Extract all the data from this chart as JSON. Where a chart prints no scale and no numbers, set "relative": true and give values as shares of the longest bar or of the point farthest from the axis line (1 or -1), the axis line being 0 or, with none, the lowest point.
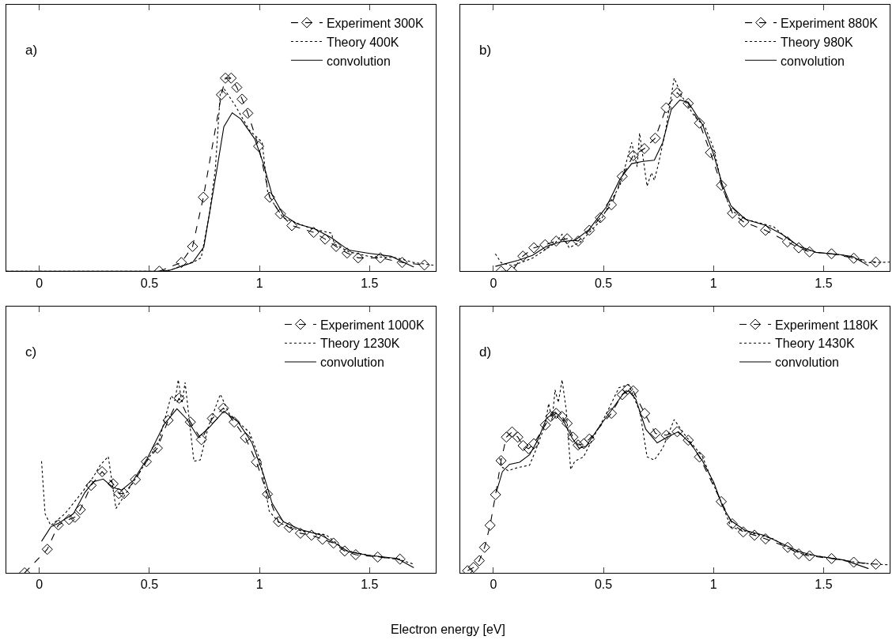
{
  "chart_data": [
    {
      "type": "line",
      "relative": true,
      "annotations": [
        "a)"
      ],
      "xlim": [
        -0.15,
        1.8
      ],
      "xticks": [
        0,
        0.5,
        1,
        1.5
      ],
      "tick_labels": "x",
      "legend": "top right",
      "series": [
        {
          "name": "Experiment 300K",
          "color": "#000000",
          "line_style": "dashed",
          "marker": "diamond",
          "x": [
            0.545,
            0.645,
            0.696,
            0.745,
            0.827,
            0.845,
            0.871,
            0.897,
            0.921,
            0.947,
            0.996,
            1.046,
            1.095,
            1.147,
            1.246,
            1.298,
            1.348,
            1.398,
            1.448,
            1.549,
            1.648,
            1.749
          ],
          "values": [
            0,
            0.045,
            0.128,
            0.383,
            0.914,
            1,
            1,
            0.952,
            0.891,
            0.818,
            0.647,
            0.383,
            0.297,
            0.236,
            0.201,
            0.166,
            0.128,
            0.094,
            0.069,
            0.069,
            0.045,
            0.032
          ]
        },
        {
          "name": "Theory 400K",
          "color": "#000000",
          "line_style": "dotted",
          "marker": "none",
          "x": [
            -0.15,
            0.55,
            0.593,
            0.709,
            0.735,
            0.773,
            0.799,
            0.822,
            0.838,
            0.889,
            0.954,
            1.012,
            1.037,
            1.057,
            1.108,
            1.237,
            1.327,
            1.34,
            1.405,
            1.495,
            1.624,
            1.7,
            1.8
          ],
          "values": [
            0,
            0,
            0.005,
            0.053,
            0.069,
            0.3,
            0.524,
            0.923,
            0.947,
            0.859,
            0.73,
            0.668,
            0.412,
            0.364,
            0.276,
            0.22,
            0.197,
            0.141,
            0.101,
            0.077,
            0.069,
            0.045,
            0.029
          ]
        },
        {
          "name": "convolution",
          "color": "#000000",
          "line_style": "solid",
          "marker": "none",
          "x": [
            -0.15,
            0.55,
            0.593,
            0.696,
            0.747,
            0.799,
            0.838,
            0.876,
            0.915,
            0.979,
            1.018,
            1.057,
            1.108,
            1.173,
            1.25,
            1.327,
            1.405,
            1.495,
            1.598,
            1.701
          ],
          "values": [
            0,
            0,
            0.005,
            0.045,
            0.125,
            0.476,
            0.748,
            0.82,
            0.788,
            0.684,
            0.556,
            0.396,
            0.292,
            0.244,
            0.22,
            0.173,
            0.109,
            0.093,
            0.077,
            0.021
          ]
        }
      ]
    },
    {
      "type": "line",
      "relative": true,
      "annotations": [
        "b)"
      ],
      "xlim": [
        -0.15,
        1.8
      ],
      "xticks": [
        0,
        0.5,
        1,
        1.5
      ],
      "tick_labels": "x",
      "legend": "top right",
      "series": [
        {
          "name": "Experiment 880K",
          "color": "#000000",
          "line_style": "dashed",
          "marker": "diamond",
          "x": [
            0.035,
            0.084,
            0.134,
            0.184,
            0.235,
            0.285,
            0.335,
            0.385,
            0.436,
            0.486,
            0.536,
            0.585,
            0.635,
            0.686,
            0.735,
            0.785,
            0.835,
            0.885,
            0.936,
            0.986,
            1.036,
            1.086,
            1.137,
            1.236,
            1.336,
            1.387,
            1.436,
            1.536,
            1.637,
            1.737
          ],
          "values": [
            0,
            0,
            0.078,
            0.121,
            0.137,
            0.156,
            0.168,
            0.156,
            0.212,
            0.277,
            0.344,
            0.491,
            0.599,
            0.635,
            0.689,
            0.846,
            0.924,
            0.869,
            0.767,
            0.614,
            0.445,
            0.3,
            0.255,
            0.212,
            0.152,
            0.121,
            0.1,
            0.09,
            0.067,
            0.047
          ]
        },
        {
          "name": "Theory 980K",
          "color": "#000000",
          "line_style": "dotted",
          "marker": "none",
          "x": [
            0.009,
            0.035,
            0.086,
            0.177,
            0.28,
            0.312,
            0.344,
            0.396,
            0.486,
            0.576,
            0.628,
            0.653,
            0.664,
            0.698,
            0.718,
            0.731,
            0.75,
            0.782,
            0.821,
            0.86,
            0.911,
            0.963,
            1.001,
            1.04,
            1.079,
            1.144,
            1.273,
            1.336,
            1.4,
            1.465,
            1.594,
            1.697,
            1.8
          ],
          "values": [
            0.09,
            0.044,
            0.028,
            0.067,
            0.145,
            0.191,
            0.121,
            0.152,
            0.261,
            0.448,
            0.666,
            0.541,
            0.715,
            0.44,
            0.51,
            0.471,
            0.557,
            0.728,
            1,
            0.899,
            0.806,
            0.743,
            0.635,
            0.432,
            0.316,
            0.269,
            0.23,
            0.168,
            0.121,
            0.098,
            0.082,
            0.044,
            0.047
          ]
        },
        {
          "name": "convolution",
          "color": "#000000",
          "line_style": "solid",
          "marker": "none",
          "x": [
            0.009,
            0.112,
            0.177,
            0.241,
            0.305,
            0.37,
            0.434,
            0.512,
            0.576,
            0.628,
            0.679,
            0.731,
            0.769,
            0.808,
            0.847,
            0.885,
            0.95,
            1.001,
            1.04,
            1.079,
            1.144,
            1.234,
            1.311,
            1.388,
            1.465,
            1.568,
            1.633,
            1.704
          ],
          "values": [
            0.025,
            0.056,
            0.082,
            0.129,
            0.152,
            0.16,
            0.215,
            0.331,
            0.479,
            0.557,
            0.569,
            0.575,
            0.666,
            0.837,
            0.886,
            0.876,
            0.759,
            0.603,
            0.448,
            0.339,
            0.269,
            0.238,
            0.191,
            0.129,
            0.098,
            0.087,
            0.075,
            0.028
          ]
        }
      ]
    },
    {
      "type": "line",
      "relative": true,
      "annotations": [
        "c)"
      ],
      "xlim": [
        -0.15,
        1.8
      ],
      "xticks": [
        0,
        0.5,
        1,
        1.5
      ],
      "tick_labels": "x",
      "legend": "top right",
      "series": [
        {
          "name": "Experiment 1000K",
          "color": "#000000",
          "line_style": "dashed",
          "marker": "diamond",
          "x": [
            -0.067,
            0.036,
            0.086,
            0.135,
            0.161,
            0.186,
            0.235,
            0.285,
            0.335,
            0.361,
            0.385,
            0.436,
            0.486,
            0.536,
            0.585,
            0.635,
            0.686,
            0.736,
            0.786,
            0.836,
            0.885,
            0.936,
            0.986,
            1.036,
            1.086,
            1.135,
            1.186,
            1.236,
            1.286,
            1.336,
            1.387,
            1.437,
            1.537,
            1.638
          ],
          "values": [
            0,
            0.122,
            0.248,
            0.276,
            0.288,
            0.327,
            0.453,
            0.524,
            0.461,
            0.411,
            0.411,
            0.483,
            0.576,
            0.646,
            0.79,
            0.905,
            0.781,
            0.69,
            0.8,
            0.853,
            0.781,
            0.7,
            0.574,
            0.408,
            0.265,
            0.235,
            0.205,
            0.195,
            0.174,
            0.154,
            0.113,
            0.094,
            0.082,
            0.071
          ]
        },
        {
          "name": "Theory 1230K",
          "color": "#000000",
          "line_style": "dotted",
          "marker": "none",
          "x": [
            0.01,
            0.026,
            0.052,
            0.116,
            0.193,
            0.245,
            0.277,
            0.313,
            0.348,
            0.387,
            0.438,
            0.541,
            0.599,
            0.616,
            0.631,
            0.648,
            0.662,
            0.702,
            0.731,
            0.767,
            0.822,
            0.863,
            0.954,
            1.005,
            1.044,
            1.089,
            1.186,
            1.302,
            1.392,
            1.495,
            1.637,
            1.701
          ],
          "values": [
            0.578,
            0.306,
            0.245,
            0.306,
            0.415,
            0.497,
            0.558,
            0.603,
            0.333,
            0.401,
            0.49,
            0.673,
            0.918,
            0.891,
            1,
            0.878,
            0.986,
            0.578,
            0.585,
            0.755,
            0.925,
            0.823,
            0.728,
            0.578,
            0.32,
            0.259,
            0.218,
            0.197,
            0.116,
            0.091,
            0.068,
            0.045
          ]
        },
        {
          "name": "convolution",
          "color": "#000000",
          "line_style": "solid",
          "marker": "none",
          "x": [
            0.01,
            0.052,
            0.09,
            0.155,
            0.206,
            0.245,
            0.29,
            0.335,
            0.374,
            0.425,
            0.49,
            0.567,
            0.625,
            0.67,
            0.722,
            0.773,
            0.838,
            0.902,
            0.966,
            1.018,
            1.057,
            1.108,
            1.186,
            1.276,
            1.34,
            1.405,
            1.495,
            1.624,
            1.701
          ],
          "values": [
            0.163,
            0.238,
            0.259,
            0.306,
            0.415,
            0.472,
            0.486,
            0.442,
            0.429,
            0.476,
            0.592,
            0.769,
            0.85,
            0.796,
            0.701,
            0.755,
            0.837,
            0.782,
            0.673,
            0.51,
            0.361,
            0.265,
            0.224,
            0.197,
            0.156,
            0.109,
            0.091,
            0.075,
            0.027
          ]
        }
      ]
    },
    {
      "type": "line",
      "relative": true,
      "annotations": [
        "d)"
      ],
      "xlabel": "Electron energy [eV]",
      "xlim": [
        -0.15,
        1.8
      ],
      "xticks": [
        0,
        0.5,
        1,
        1.5
      ],
      "tick_labels": "x",
      "legend": "top right",
      "series": [
        {
          "name": "Experiment 1180K",
          "color": "#000000",
          "line_style": "dashed",
          "marker": "diamond",
          "x": [
            -0.117,
            -0.09,
            -0.064,
            -0.04,
            -0.015,
            0.01,
            0.035,
            0.059,
            0.085,
            0.111,
            0.135,
            0.16,
            0.184,
            0.236,
            0.26,
            0.285,
            0.311,
            0.335,
            0.361,
            0.385,
            0.411,
            0.436,
            0.536,
            0.585,
            0.61,
            0.635,
            0.687,
            0.736,
            0.785,
            0.835,
            0.885,
            0.936,
            1.035,
            1.085,
            1.135,
            1.186,
            1.236,
            1.337,
            1.387,
            1.436,
            1.536,
            1.637,
            1.737
          ],
          "values": [
            0.011,
            0.028,
            0.063,
            0.132,
            0.246,
            0.405,
            0.581,
            0.703,
            0.73,
            0.703,
            0.659,
            0.643,
            0.669,
            0.766,
            0.81,
            0.826,
            0.81,
            0.774,
            0.703,
            0.662,
            0.669,
            0.693,
            0.826,
            0.923,
            0.951,
            0.943,
            0.826,
            0.722,
            0.713,
            0.731,
            0.687,
            0.6,
            0.369,
            0.254,
            0.212,
            0.195,
            0.176,
            0.132,
            0.098,
            0.088,
            0.074,
            0.055,
            0.045
          ]
        },
        {
          "name": "Theory 1430K",
          "color": "#000000",
          "line_style": "dotted",
          "marker": "none",
          "x": [
            0.028,
            0.041,
            0.067,
            0.112,
            0.164,
            0.189,
            0.235,
            0.251,
            0.267,
            0.28,
            0.295,
            0.312,
            0.331,
            0.351,
            0.37,
            0.409,
            0.46,
            0.512,
            0.57,
            0.615,
            0.666,
            0.698,
            0.731,
            0.769,
            0.821,
            0.872,
            0.95,
            1.008,
            1.034,
            1.079,
            1.182,
            1.272,
            1.337,
            1.401,
            1.53,
            1.672,
            1.8
          ],
          "values": [
            0.595,
            0.546,
            0.529,
            0.546,
            0.557,
            0.625,
            0.766,
            0.877,
            0.789,
            0.948,
            0.882,
            1,
            0.843,
            0.535,
            0.579,
            0.6,
            0.714,
            0.821,
            0.959,
            0.974,
            0.832,
            0.601,
            0.584,
            0.645,
            0.794,
            0.711,
            0.601,
            0.436,
            0.369,
            0.237,
            0.204,
            0.176,
            0.127,
            0.099,
            0.077,
            0.05,
            0.041
          ]
        },
        {
          "name": "convolution",
          "color": "#000000",
          "line_style": "solid",
          "marker": "none",
          "x": [
            0.015,
            0.041,
            0.073,
            0.119,
            0.164,
            0.202,
            0.241,
            0.28,
            0.318,
            0.357,
            0.389,
            0.421,
            0.473,
            0.537,
            0.589,
            0.615,
            0.647,
            0.692,
            0.744,
            0.795,
            0.84,
            0.898,
            0.95,
            1.001,
            1.04,
            1.079,
            1.143,
            1.233,
            1.336,
            1.388,
            1.465,
            1.594,
            1.704
          ],
          "values": [
            0.424,
            0.524,
            0.562,
            0.573,
            0.611,
            0.689,
            0.8,
            0.833,
            0.788,
            0.7,
            0.645,
            0.656,
            0.744,
            0.844,
            0.926,
            0.943,
            0.899,
            0.744,
            0.673,
            0.706,
            0.731,
            0.667,
            0.579,
            0.469,
            0.347,
            0.27,
            0.22,
            0.193,
            0.138,
            0.11,
            0.088,
            0.066,
            0.022
          ]
        }
      ]
    }
  ]
}
